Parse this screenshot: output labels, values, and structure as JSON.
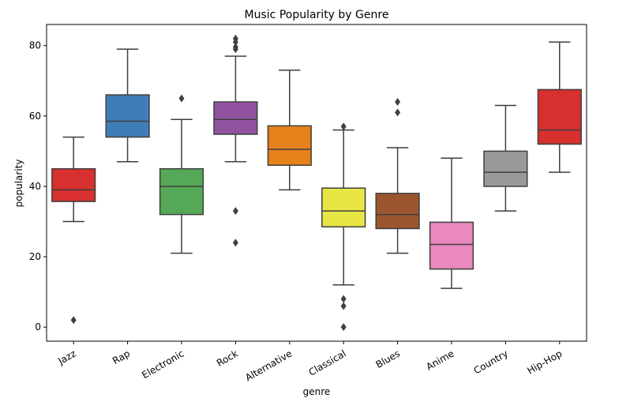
{
  "chart_data": {
    "type": "boxplot",
    "title": "Music Popularity by Genre",
    "xlabel": "genre",
    "ylabel": "popularity",
    "ylim": [
      -4,
      86
    ],
    "yticks": [
      0,
      20,
      40,
      60,
      80
    ],
    "grid": false,
    "legend": "none",
    "categories": [
      "Jazz",
      "Rap",
      "Electronic",
      "Rock",
      "Alternative",
      "Classical",
      "Blues",
      "Anime",
      "Country",
      "Hip-Hop"
    ],
    "boxes": [
      {
        "category": "Jazz",
        "color": "#d7302e",
        "whislo": 30,
        "q1": 35.7,
        "median": 39,
        "q3": 45,
        "whishi": 54,
        "fliers": [
          2
        ]
      },
      {
        "category": "Rap",
        "color": "#3f7db8",
        "whislo": 47,
        "q1": 54,
        "median": 58.5,
        "q3": 66,
        "whishi": 79,
        "fliers": []
      },
      {
        "category": "Electronic",
        "color": "#54a856",
        "whislo": 21,
        "q1": 32,
        "median": 40,
        "q3": 45,
        "whishi": 59,
        "fliers": [
          65
        ]
      },
      {
        "category": "Rock",
        "color": "#9152a0",
        "whislo": 47,
        "q1": 54.8,
        "median": 59,
        "q3": 64,
        "whishi": 77,
        "fliers": [
          82,
          81,
          79.6,
          79,
          33,
          24
        ]
      },
      {
        "category": "Alternative",
        "color": "#e7811c",
        "whislo": 39,
        "q1": 46,
        "median": 50.5,
        "q3": 57.2,
        "whishi": 73,
        "fliers": []
      },
      {
        "category": "Classical",
        "color": "#e8e645",
        "whislo": 12,
        "q1": 28.5,
        "median": 33,
        "q3": 39.5,
        "whishi": 56,
        "fliers": [
          57,
          8,
          6,
          0
        ]
      },
      {
        "category": "Blues",
        "color": "#9b5630",
        "whislo": 21,
        "q1": 28,
        "median": 32,
        "q3": 38,
        "whishi": 51,
        "fliers": [
          64,
          61
        ]
      },
      {
        "category": "Anime",
        "color": "#e989be",
        "whislo": 11,
        "q1": 16.5,
        "median": 23.5,
        "q3": 29.8,
        "whishi": 48,
        "fliers": []
      },
      {
        "category": "Country",
        "color": "#999999",
        "whislo": 33,
        "q1": 40,
        "median": 44,
        "q3": 50,
        "whishi": 63,
        "fliers": []
      },
      {
        "category": "Hip-Hop",
        "color": "#d7302e",
        "whislo": 44,
        "q1": 52,
        "median": 56,
        "q3": 67.5,
        "whishi": 81,
        "fliers": []
      }
    ]
  }
}
